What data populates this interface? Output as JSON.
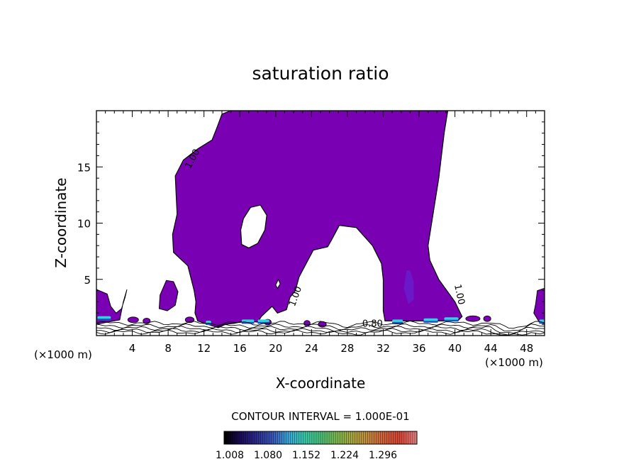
{
  "chart_data": {
    "type": "contour",
    "title": "saturation ratio",
    "xlabel": "X-coordinate",
    "ylabel": "Z-coordinate",
    "x_unit": "(×1000 m)",
    "x_unit_right": "(×1000 m)",
    "xlim": [
      0,
      50
    ],
    "ylim": [
      0,
      20
    ],
    "x_ticks": [
      4,
      8,
      12,
      16,
      20,
      24,
      28,
      32,
      36,
      40,
      44,
      48
    ],
    "y_ticks": [
      5,
      10,
      15
    ],
    "contour_interval_text": "CONTOUR INTERVAL = 1.000E-01",
    "contour_labels": [
      {
        "text": "1.00",
        "x": 11.0,
        "y": 15.6
      },
      {
        "text": "1.00",
        "x": 22.5,
        "y": 3.4
      },
      {
        "text": "1.00",
        "x": 40.2,
        "y": 3.6
      },
      {
        "text": "0.80",
        "x": 30.8,
        "y": 0.8
      }
    ],
    "colorbar": {
      "labels": [
        "1.008",
        "1.080",
        "1.152",
        "1.224",
        "1.296"
      ],
      "range": [
        1.008,
        1.332
      ],
      "colors": [
        "#000000",
        "#1c0c5c",
        "#2d2d8c",
        "#3a56b8",
        "#3aa8d8",
        "#39c9a8",
        "#49c07a",
        "#7ab84e",
        "#a8a840",
        "#c48a3c",
        "#d0603a",
        "#d84434",
        "#e28080"
      ]
    },
    "regions": {
      "fill_color": "#7a00b4",
      "dark_color": "#6a18c8",
      "cyan_color": "#2ed6d8",
      "blue_color": "#1e50c8"
    }
  }
}
